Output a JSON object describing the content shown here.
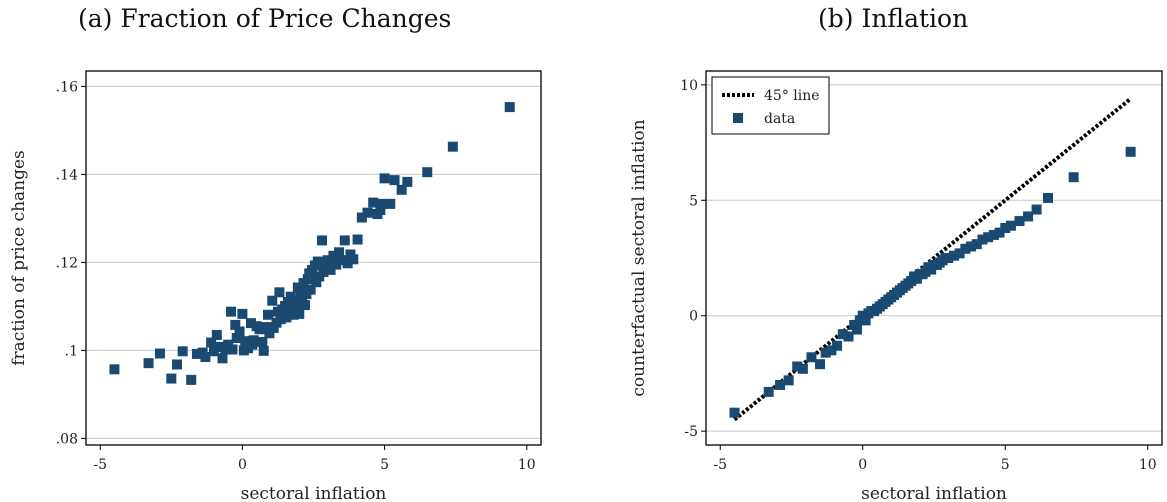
{
  "marker_color": "#1a4a72",
  "line_color": "#000000",
  "grid_color": "#c8c8c8",
  "chart_data": [
    {
      "type": "scatter",
      "title": "(a) Fraction of Price Changes",
      "xlabel": "sectoral inflation",
      "ylabel": "fraction of price changes",
      "xlim": [
        -5.5,
        10.5
      ],
      "ylim": [
        0.0785,
        0.1635
      ],
      "xticks": [
        -5,
        0,
        5,
        10
      ],
      "xtick_labels": [
        "-5",
        "0",
        "5",
        "10"
      ],
      "yticks": [
        0.08,
        0.1,
        0.12,
        0.14,
        0.16
      ],
      "ytick_labels": [
        ".08",
        ".1",
        ".12",
        ".14",
        ".16"
      ],
      "grid": "horizontal",
      "legend": null,
      "series": [
        {
          "marker": "square",
          "points": [
            [
              -4.5,
              0.0957
            ],
            [
              -3.3,
              0.0971
            ],
            [
              -2.9,
              0.0993
            ],
            [
              -2.5,
              0.0936
            ],
            [
              -2.3,
              0.0968
            ],
            [
              -2.1,
              0.0998
            ],
            [
              -1.8,
              0.0933
            ],
            [
              -1.6,
              0.0992
            ],
            [
              -1.4,
              0.0995
            ],
            [
              -1.3,
              0.0985
            ],
            [
              -1.1,
              0.1018
            ],
            [
              -1.0,
              0.0998
            ],
            [
              -0.9,
              0.1035
            ],
            [
              -0.8,
              0.1008
            ],
            [
              -0.7,
              0.0982
            ],
            [
              -0.6,
              0.1003
            ],
            [
              -0.5,
              0.1013
            ],
            [
              -0.4,
              0.1088
            ],
            [
              -0.35,
              0.1002
            ],
            [
              -0.25,
              0.1058
            ],
            [
              -0.2,
              0.1028
            ],
            [
              -0.1,
              0.1043
            ],
            [
              0.0,
              0.1083
            ],
            [
              0.05,
              0.1
            ],
            [
              0.1,
              0.1021
            ],
            [
              0.2,
              0.1005
            ],
            [
              0.3,
              0.1062
            ],
            [
              0.35,
              0.1013
            ],
            [
              0.4,
              0.1023
            ],
            [
              0.5,
              0.1055
            ],
            [
              0.6,
              0.1048
            ],
            [
              0.7,
              0.1019
            ],
            [
              0.75,
              0.0999
            ],
            [
              0.85,
              0.1053
            ],
            [
              0.9,
              0.1081
            ],
            [
              0.95,
              0.1039
            ],
            [
              1.05,
              0.1113
            ],
            [
              1.1,
              0.1051
            ],
            [
              1.2,
              0.1063
            ],
            [
              1.25,
              0.1088
            ],
            [
              1.3,
              0.1132
            ],
            [
              1.35,
              0.1071
            ],
            [
              1.4,
              0.1093
            ],
            [
              1.45,
              0.1083
            ],
            [
              1.5,
              0.1101
            ],
            [
              1.55,
              0.1075
            ],
            [
              1.6,
              0.111
            ],
            [
              1.65,
              0.1098
            ],
            [
              1.7,
              0.1122
            ],
            [
              1.75,
              0.109
            ],
            [
              1.8,
              0.1081
            ],
            [
              1.85,
              0.1112
            ],
            [
              1.9,
              0.1102
            ],
            [
              1.95,
              0.1143
            ],
            [
              2.0,
              0.1083
            ],
            [
              2.05,
              0.1131
            ],
            [
              2.1,
              0.1115
            ],
            [
              2.15,
              0.1153
            ],
            [
              2.2,
              0.1103
            ],
            [
              2.25,
              0.1128
            ],
            [
              2.3,
              0.1162
            ],
            [
              2.35,
              0.1175
            ],
            [
              2.4,
              0.1138
            ],
            [
              2.45,
              0.1183
            ],
            [
              2.5,
              0.1163
            ],
            [
              2.55,
              0.1193
            ],
            [
              2.6,
              0.1155
            ],
            [
              2.65,
              0.1202
            ],
            [
              2.7,
              0.1168
            ],
            [
              2.8,
              0.125
            ],
            [
              2.85,
              0.1178
            ],
            [
              2.9,
              0.1198
            ],
            [
              3.0,
              0.1205
            ],
            [
              3.1,
              0.1183
            ],
            [
              3.2,
              0.1215
            ],
            [
              3.3,
              0.1195
            ],
            [
              3.4,
              0.1223
            ],
            [
              3.5,
              0.1205
            ],
            [
              3.6,
              0.125
            ],
            [
              3.7,
              0.1198
            ],
            [
              3.8,
              0.1218
            ],
            [
              3.9,
              0.1207
            ],
            [
              4.05,
              0.1252
            ],
            [
              4.2,
              0.1302
            ],
            [
              4.4,
              0.1313
            ],
            [
              4.6,
              0.1336
            ],
            [
              4.75,
              0.131
            ],
            [
              4.85,
              0.1319
            ],
            [
              4.9,
              0.1333
            ],
            [
              5.0,
              0.1391
            ],
            [
              5.2,
              0.1333
            ],
            [
              5.35,
              0.1387
            ],
            [
              5.6,
              0.1365
            ],
            [
              5.8,
              0.1383
            ],
            [
              6.5,
              0.1405
            ],
            [
              7.4,
              0.1463
            ],
            [
              9.4,
              0.1553
            ]
          ]
        }
      ]
    },
    {
      "type": "scatter",
      "title": "(b) Inflation",
      "xlabel": "sectoral inflation",
      "ylabel": "counterfactual sectoral inflation",
      "xlim": [
        -5.5,
        10.5
      ],
      "ylim": [
        -5.6,
        10.6
      ],
      "xticks": [
        -5,
        0,
        5,
        10
      ],
      "xtick_labels": [
        "-5",
        "0",
        "5",
        "10"
      ],
      "yticks": [
        -5,
        0,
        5,
        10
      ],
      "ytick_labels": [
        "-5",
        "0",
        "5",
        "10"
      ],
      "grid": "horizontal",
      "legend": {
        "position": "top-left",
        "entries": [
          {
            "label": "45° line",
            "style": "dotted-line"
          },
          {
            "label": "data",
            "style": "square-marker"
          }
        ]
      },
      "series": [
        {
          "name": "45° line",
          "type": "line",
          "style": "dotted",
          "points": [
            [
              -4.5,
              -4.5
            ],
            [
              9.4,
              9.4
            ]
          ]
        },
        {
          "name": "data",
          "marker": "square",
          "points": [
            [
              -4.5,
              -4.2
            ],
            [
              -3.3,
              -3.3
            ],
            [
              -2.9,
              -3.0
            ],
            [
              -2.6,
              -2.8
            ],
            [
              -2.3,
              -2.2
            ],
            [
              -2.1,
              -2.3
            ],
            [
              -1.8,
              -1.8
            ],
            [
              -1.5,
              -2.1
            ],
            [
              -1.3,
              -1.6
            ],
            [
              -1.1,
              -1.5
            ],
            [
              -0.9,
              -1.3
            ],
            [
              -0.7,
              -0.8
            ],
            [
              -0.5,
              -0.9
            ],
            [
              -0.3,
              -0.4
            ],
            [
              -0.2,
              -0.6
            ],
            [
              -0.1,
              -0.2
            ],
            [
              0.0,
              0.0
            ],
            [
              0.1,
              -0.2
            ],
            [
              0.2,
              0.1
            ],
            [
              0.3,
              0.2
            ],
            [
              0.4,
              0.2
            ],
            [
              0.5,
              0.3
            ],
            [
              0.6,
              0.4
            ],
            [
              0.7,
              0.5
            ],
            [
              0.8,
              0.6
            ],
            [
              0.9,
              0.7
            ],
            [
              1.0,
              0.8
            ],
            [
              1.1,
              0.9
            ],
            [
              1.2,
              1.0
            ],
            [
              1.3,
              1.1
            ],
            [
              1.4,
              1.2
            ],
            [
              1.5,
              1.3
            ],
            [
              1.6,
              1.4
            ],
            [
              1.7,
              1.5
            ],
            [
              1.8,
              1.7
            ],
            [
              1.9,
              1.6
            ],
            [
              2.0,
              1.8
            ],
            [
              2.1,
              1.8
            ],
            [
              2.2,
              1.9
            ],
            [
              2.3,
              2.1
            ],
            [
              2.4,
              2.0
            ],
            [
              2.5,
              2.2
            ],
            [
              2.6,
              2.2
            ],
            [
              2.7,
              2.3
            ],
            [
              2.8,
              2.4
            ],
            [
              2.9,
              2.5
            ],
            [
              3.0,
              2.5
            ],
            [
              3.2,
              2.6
            ],
            [
              3.4,
              2.7
            ],
            [
              3.6,
              2.9
            ],
            [
              3.8,
              3.0
            ],
            [
              4.0,
              3.1
            ],
            [
              4.2,
              3.3
            ],
            [
              4.4,
              3.4
            ],
            [
              4.6,
              3.5
            ],
            [
              4.8,
              3.6
            ],
            [
              5.0,
              3.8
            ],
            [
              5.2,
              3.9
            ],
            [
              5.5,
              4.1
            ],
            [
              5.8,
              4.3
            ],
            [
              6.1,
              4.6
            ],
            [
              6.5,
              5.1
            ],
            [
              7.4,
              6.0
            ],
            [
              9.4,
              7.1
            ]
          ]
        }
      ]
    }
  ]
}
